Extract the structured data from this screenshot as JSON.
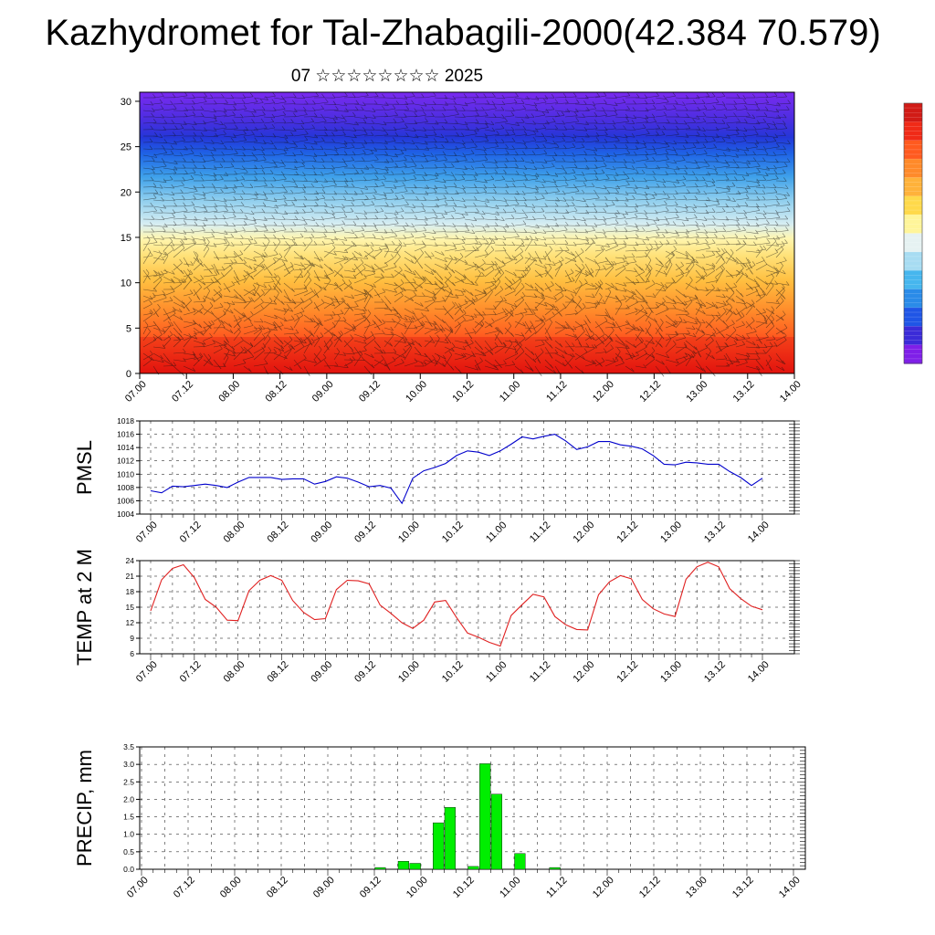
{
  "title": "Kazhydromet for Tal-Zhabagili-2000(42.384 70.579)",
  "subtitle": "07 ☆☆☆☆☆☆☆☆ 2025",
  "chart_data": [
    {
      "type": "heatmap",
      "name": "vertical cross-section (temperature shading with wind barbs)",
      "x_ticks": [
        "07.00",
        "07.12",
        "08.00",
        "08.12",
        "09.00",
        "09.12",
        "10.00",
        "10.12",
        "11.00",
        "11.12",
        "12.00",
        "12.12",
        "13.00",
        "13.12",
        "14.00"
      ],
      "y_ticks": [
        0,
        5,
        10,
        15,
        20,
        25,
        30
      ],
      "ylim": [
        0,
        31
      ],
      "colorbar": [
        "#7f1fe8",
        "#3b2bd8",
        "#1f55e6",
        "#2a8be8",
        "#46b6ee",
        "#a7dcf2",
        "#e6f2f2",
        "#fff59a",
        "#ffd94a",
        "#ffb23a",
        "#ff8a2a",
        "#ff5a1f",
        "#f02a17",
        "#d11b16"
      ]
    },
    {
      "type": "line",
      "ylabel": "PMSL",
      "x_ticks": [
        "07.00",
        "07.12",
        "08.00",
        "08.12",
        "09.00",
        "09.12",
        "10.00",
        "10.12",
        "11.00",
        "11.12",
        "12.00",
        "12.12",
        "13.00",
        "13.12",
        "14.00"
      ],
      "y_ticks": [
        1004,
        1006,
        1008,
        1010,
        1012,
        1014,
        1016,
        1018
      ],
      "ylim": [
        1004,
        1018
      ],
      "color": "#0000cc",
      "values": [
        1007.5,
        1007.2,
        1008.2,
        1008.1,
        1008.3,
        1008.5,
        1008.3,
        1008.0,
        1008.8,
        1009.5,
        1009.5,
        1009.5,
        1009.2,
        1009.3,
        1009.3,
        1008.5,
        1008.9,
        1009.6,
        1009.4,
        1008.8,
        1008.1,
        1008.3,
        1007.9,
        1005.6,
        1009.4,
        1010.5,
        1011.0,
        1011.6,
        1012.8,
        1013.5,
        1013.3,
        1012.8,
        1013.5,
        1014.5,
        1015.6,
        1015.3,
        1015.7,
        1016.0,
        1015.0,
        1013.7,
        1014.1,
        1014.9,
        1014.9,
        1014.4,
        1014.2,
        1013.8,
        1012.8,
        1011.5,
        1011.4,
        1011.8,
        1011.7,
        1011.5,
        1011.5,
        1010.4,
        1009.5,
        1008.3,
        1009.4
      ]
    },
    {
      "type": "line",
      "ylabel": "TEMP at 2 M",
      "x_ticks": [
        "07.00",
        "07.12",
        "08.00",
        "08.12",
        "09.00",
        "09.12",
        "10.00",
        "10.12",
        "11.00",
        "11.12",
        "12.00",
        "12.12",
        "13.00",
        "13.12",
        "14.00"
      ],
      "y_ticks": [
        6,
        9,
        12,
        15,
        18,
        21,
        24
      ],
      "ylim": [
        6,
        24
      ],
      "color": "#e02020",
      "values": [
        14.3,
        20.3,
        22.5,
        23.2,
        20.7,
        16.5,
        15.0,
        12.5,
        12.4,
        18.2,
        20.2,
        21.1,
        20.2,
        16.3,
        14.0,
        12.6,
        12.8,
        18.4,
        20.2,
        20.1,
        19.5,
        15.4,
        13.8,
        12.0,
        10.9,
        12.5,
        16.0,
        16.3,
        13.0,
        10.0,
        9.2,
        8.2,
        7.5,
        13.4,
        15.5,
        17.5,
        17.0,
        13.2,
        11.6,
        10.7,
        10.6,
        17.4,
        19.9,
        21.1,
        20.5,
        16.5,
        14.7,
        13.7,
        13.2,
        20.4,
        22.8,
        23.7,
        22.8,
        18.6,
        16.7,
        15.2,
        14.5
      ]
    },
    {
      "type": "bar",
      "ylabel": "PRECIP, mm",
      "x_ticks": [
        "07.00",
        "07.12",
        "08.00",
        "08.12",
        "09.00",
        "09.12",
        "10.00",
        "10.12",
        "11.00",
        "11.12",
        "12.00",
        "12.12",
        "13.00",
        "13.12",
        "14.00"
      ],
      "y_ticks": [
        "0.0",
        "0.5",
        "1.0",
        "1.5",
        "2.0",
        "2.5",
        "3.0",
        "3.5"
      ],
      "ylim": [
        0,
        3.5
      ],
      "color": "#00ee00",
      "values": [
        0,
        0,
        0,
        0,
        0,
        0,
        0,
        0,
        0,
        0,
        0,
        0,
        0,
        0,
        0,
        0,
        0,
        0,
        0,
        0,
        0.05,
        0,
        0.23,
        0.17,
        0,
        1.33,
        1.77,
        0,
        0.08,
        3.02,
        2.15,
        0,
        0.45,
        0,
        0,
        0.05,
        0,
        0,
        0,
        0,
        0,
        0,
        0,
        0,
        0,
        0,
        0,
        0,
        0,
        0,
        0,
        0,
        0,
        0,
        0,
        0,
        0
      ]
    }
  ]
}
